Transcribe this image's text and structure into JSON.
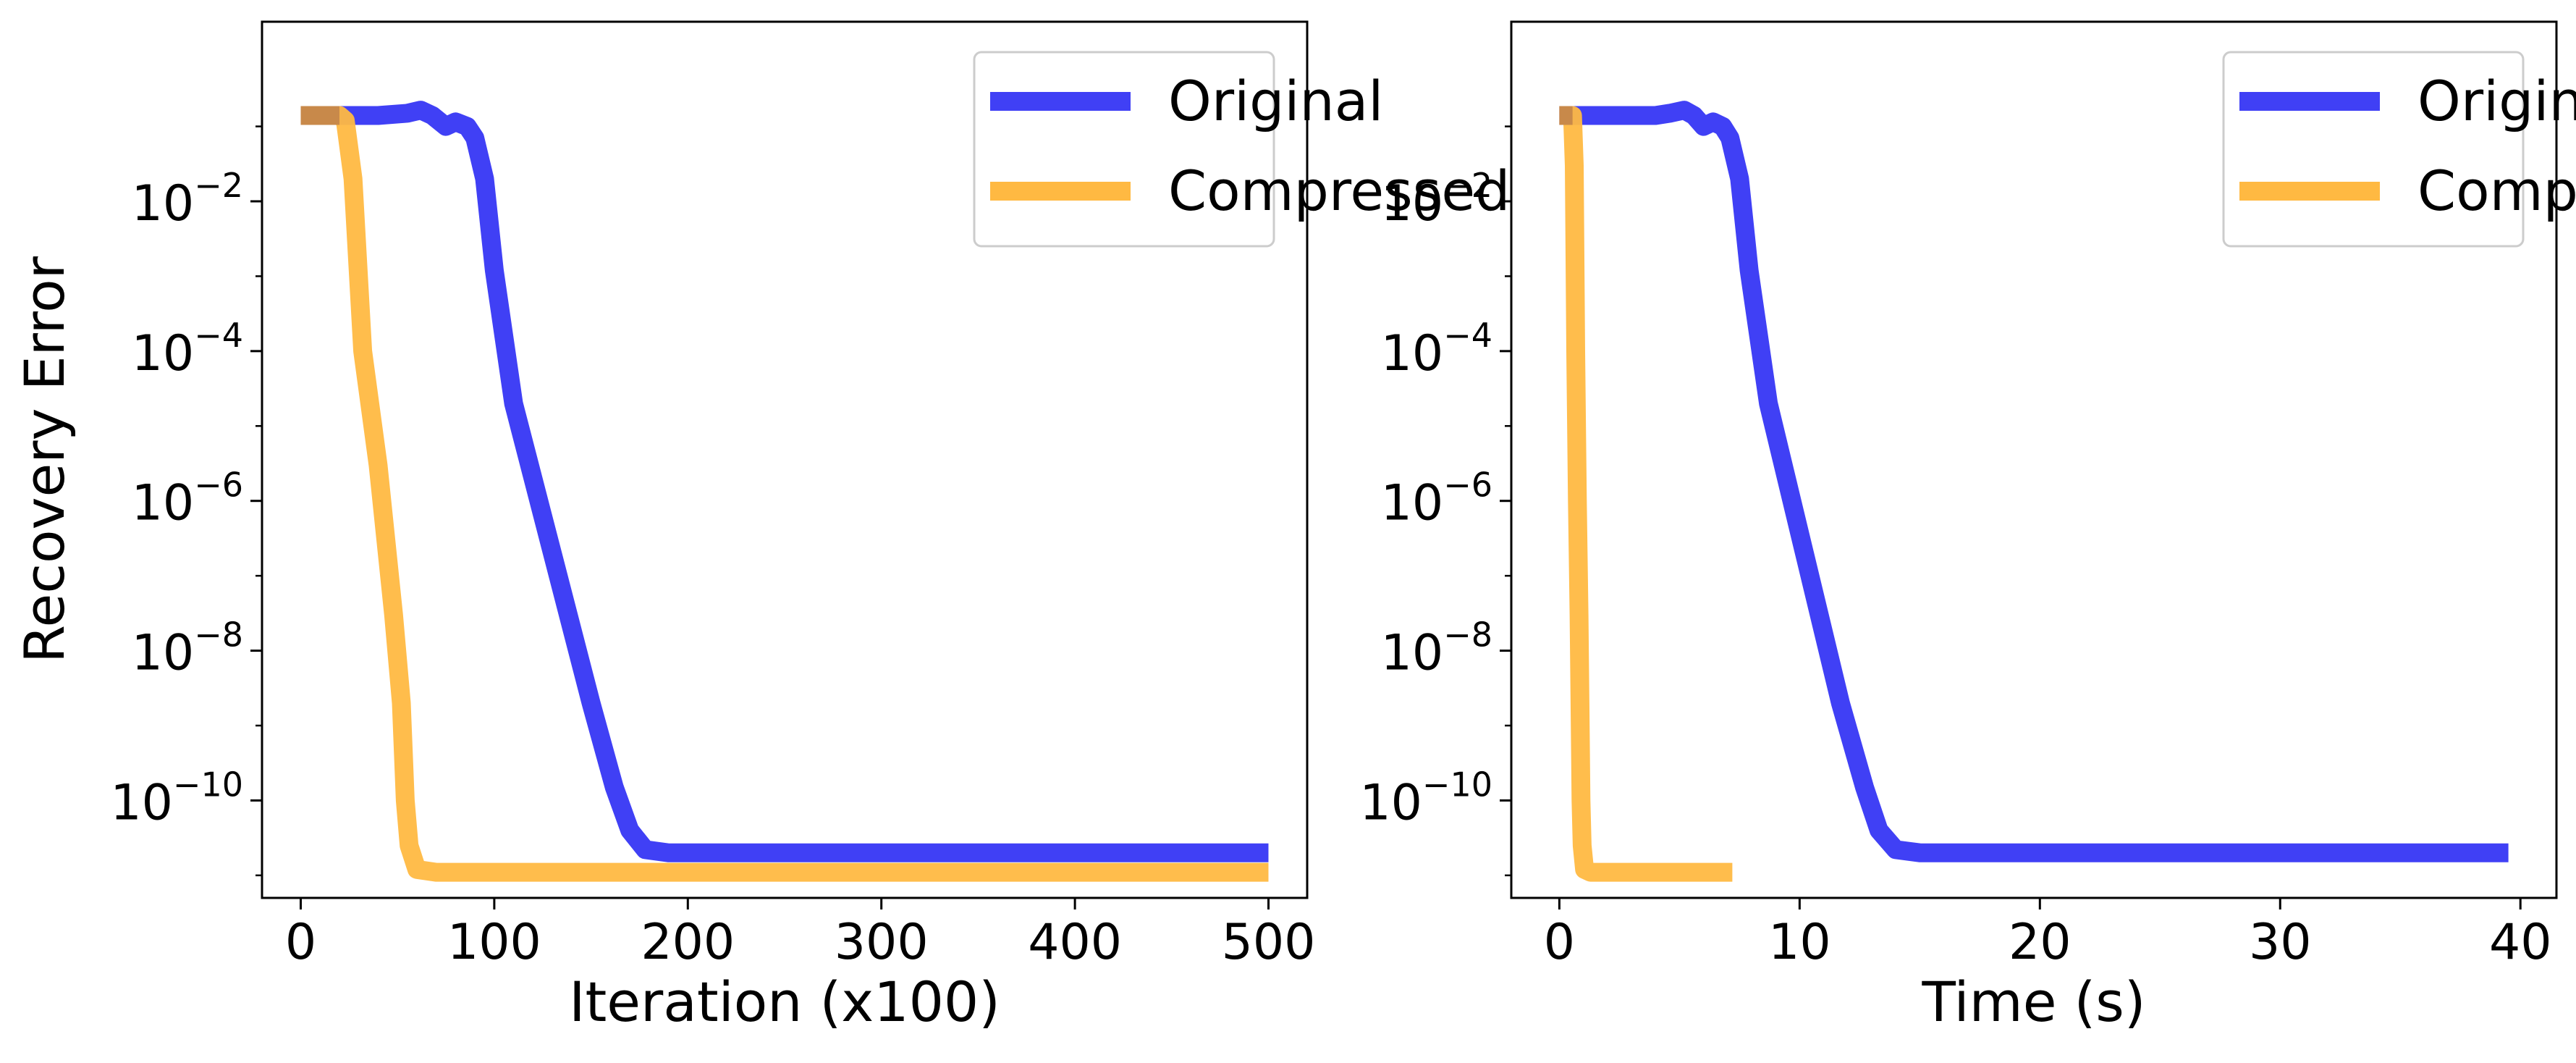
{
  "figure": {
    "ylabel": "Recovery Error"
  },
  "colors": {
    "original": "#4040f5",
    "compressed": "#ffb942",
    "overlap": "#c8894a"
  },
  "chart_data": [
    {
      "type": "line",
      "xlabel": "Iteration (x100)",
      "ylabel": "Recovery Error",
      "yscale": "log",
      "xlim": [
        -20,
        520
      ],
      "ylim": [
        5e-12,
        2.5
      ],
      "xticks": [
        {
          "value": 0,
          "label": "0"
        },
        {
          "value": 100,
          "label": "100"
        },
        {
          "value": 200,
          "label": "200"
        },
        {
          "value": 300,
          "label": "300"
        },
        {
          "value": 400,
          "label": "400"
        },
        {
          "value": 500,
          "label": "500"
        }
      ],
      "yticks": [
        {
          "value": 0.01,
          "base": "10",
          "exp": "−2"
        },
        {
          "value": 0.0001,
          "base": "10",
          "exp": "−4"
        },
        {
          "value": 1e-06,
          "base": "10",
          "exp": "−6"
        },
        {
          "value": 1e-08,
          "base": "10",
          "exp": "−8"
        },
        {
          "value": 1e-10,
          "base": "10",
          "exp": "−10"
        }
      ],
      "legend": {
        "position": "top-right"
      },
      "grid": false,
      "series": [
        {
          "name": "Original",
          "color_key": "original",
          "points": [
            [
              0,
              0.14
            ],
            [
              20,
              0.14
            ],
            [
              40,
              0.14
            ],
            [
              55,
              0.15
            ],
            [
              62,
              0.165
            ],
            [
              68,
              0.14
            ],
            [
              75,
              0.1
            ],
            [
              80,
              0.115
            ],
            [
              86,
              0.1
            ],
            [
              90,
              0.07
            ],
            [
              95,
              0.02
            ],
            [
              100,
              0.0012
            ],
            [
              110,
              2e-05
            ],
            [
              130,
              2e-07
            ],
            [
              150,
              2e-09
            ],
            [
              162,
              1.5e-10
            ],
            [
              170,
              4e-11
            ],
            [
              178,
              2.2e-11
            ],
            [
              190,
              2e-11
            ],
            [
              300,
              2e-11
            ],
            [
              400,
              2e-11
            ],
            [
              500,
              2e-11
            ]
          ]
        },
        {
          "name": "Compressed",
          "color_key": "compressed",
          "points": [
            [
              0,
              0.14
            ],
            [
              10,
              0.14
            ],
            [
              20,
              0.14
            ],
            [
              23,
              0.12
            ],
            [
              27,
              0.02
            ],
            [
              32,
              0.0001
            ],
            [
              40,
              3e-06
            ],
            [
              48,
              3e-08
            ],
            [
              52,
              2e-09
            ],
            [
              54,
              1e-10
            ],
            [
              56,
              2.5e-11
            ],
            [
              60,
              1.2e-11
            ],
            [
              70,
              1.1e-11
            ],
            [
              200,
              1.1e-11
            ],
            [
              300,
              1.1e-11
            ],
            [
              400,
              1.1e-11
            ],
            [
              500,
              1.1e-11
            ]
          ]
        }
      ]
    },
    {
      "type": "line",
      "xlabel": "Time (s)",
      "ylabel": "",
      "yscale": "log",
      "xlim": [
        -2,
        41.5
      ],
      "ylim": [
        5e-12,
        2.5
      ],
      "xticks": [
        {
          "value": 0,
          "label": "0"
        },
        {
          "value": 10,
          "label": "10"
        },
        {
          "value": 20,
          "label": "20"
        },
        {
          "value": 30,
          "label": "30"
        },
        {
          "value": 40,
          "label": "40"
        }
      ],
      "yticks": [
        {
          "value": 0.01,
          "base": "10",
          "exp": "−2"
        },
        {
          "value": 0.0001,
          "base": "10",
          "exp": "−4"
        },
        {
          "value": 1e-06,
          "base": "10",
          "exp": "−6"
        },
        {
          "value": 1e-08,
          "base": "10",
          "exp": "−8"
        },
        {
          "value": 1e-10,
          "base": "10",
          "exp": "−10"
        }
      ],
      "legend": {
        "position": "top-right"
      },
      "grid": false,
      "series": [
        {
          "name": "Original",
          "color_key": "original",
          "points": [
            [
              0,
              0.14
            ],
            [
              2,
              0.14
            ],
            [
              4,
              0.14
            ],
            [
              4.6,
              0.15
            ],
            [
              5.2,
              0.165
            ],
            [
              5.6,
              0.14
            ],
            [
              6,
              0.1
            ],
            [
              6.4,
              0.115
            ],
            [
              6.8,
              0.1
            ],
            [
              7.1,
              0.07
            ],
            [
              7.5,
              0.02
            ],
            [
              7.9,
              0.0012
            ],
            [
              8.7,
              2e-05
            ],
            [
              10.2,
              2e-07
            ],
            [
              11.7,
              2e-09
            ],
            [
              12.7,
              1.5e-10
            ],
            [
              13.3,
              4e-11
            ],
            [
              14,
              2.2e-11
            ],
            [
              15,
              2e-11
            ],
            [
              25,
              2e-11
            ],
            [
              35,
              2e-11
            ],
            [
              39.5,
              2e-11
            ]
          ]
        },
        {
          "name": "Compressed",
          "color_key": "compressed",
          "points": [
            [
              0,
              0.14
            ],
            [
              0.3,
              0.14
            ],
            [
              0.55,
              0.14
            ],
            [
              0.62,
              0.03
            ],
            [
              0.68,
              0.0001
            ],
            [
              0.75,
              1e-06
            ],
            [
              0.82,
              3e-08
            ],
            [
              0.86,
              2e-09
            ],
            [
              0.9,
              1e-10
            ],
            [
              0.95,
              2.5e-11
            ],
            [
              1.05,
              1.2e-11
            ],
            [
              1.3,
              1.1e-11
            ],
            [
              3,
              1.1e-11
            ],
            [
              5,
              1.1e-11
            ],
            [
              7.2,
              1.1e-11
            ]
          ]
        }
      ]
    }
  ]
}
